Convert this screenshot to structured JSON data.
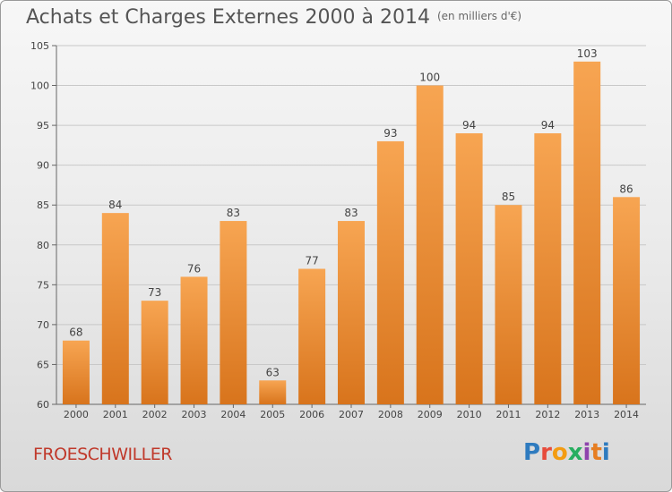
{
  "header": {
    "title": "Achats et Charges Externes 2000 à 2014",
    "subtitle": "(en milliers d'€)"
  },
  "footer": {
    "commune": "FROESCHWILLER",
    "logo_text": "Proxiti",
    "logo_colors": [
      "#2e7bbf",
      "#e74c3c",
      "#f39c12",
      "#27ae60",
      "#8e44ad",
      "#e67e22",
      "#2e7bbf"
    ]
  },
  "colors": {
    "bar_top": "#f7a552",
    "bar_bottom": "#d8741c",
    "axis": "#666666",
    "grid": "#c8c8c8"
  },
  "chart_data": {
    "type": "bar",
    "title": "Achats et Charges Externes 2000 à 2014",
    "subtitle": "(en milliers d'€)",
    "categories": [
      "2000",
      "2001",
      "2002",
      "2003",
      "2004",
      "2005",
      "2006",
      "2007",
      "2008",
      "2009",
      "2010",
      "2011",
      "2012",
      "2013",
      "2014"
    ],
    "values": [
      68,
      84,
      73,
      76,
      83,
      63,
      77,
      83,
      93,
      100,
      94,
      85,
      94,
      103,
      86
    ],
    "ylim": [
      60,
      105
    ],
    "yticks": [
      60,
      65,
      70,
      75,
      80,
      85,
      90,
      95,
      100,
      105
    ],
    "grid": true,
    "data_labels": true
  }
}
